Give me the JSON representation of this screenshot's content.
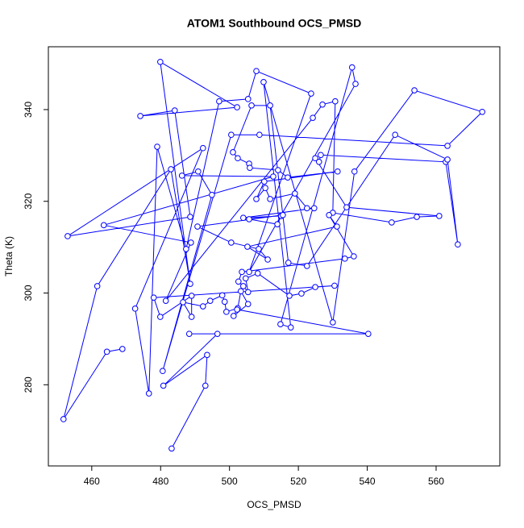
{
  "chart_data": {
    "type": "line",
    "title": "ATOM1 Southbound OCS_PMSD",
    "x_label": "OCS_PMSD",
    "y_label": "Theta (K)",
    "markers": true,
    "color": "#0000ff",
    "xlim": [
      447.4,
      578.5
    ],
    "ylim": [
      262.3,
      353.7
    ],
    "xticks": [
      460,
      480,
      500,
      520,
      540,
      560
    ],
    "yticks": [
      280,
      300,
      320,
      340
    ],
    "x": [
      468.9,
      464.4,
      451.8,
      461.6,
      483.0,
      488.6,
      479.9,
      502.2,
      474.1,
      484.1,
      488.6,
      453.0,
      492.3,
      472.6,
      476.6,
      479.0,
      487.4,
      497.0,
      505.4,
      507.8,
      523.7,
      505.7,
      536.6,
      535.6,
      514.8,
      517.8,
      509.9,
      530.0,
      536.3,
      553.7,
      573.4,
      563.3,
      508.7,
      500.5,
      480.6,
      494.9,
      490.9,
      486.2,
      512.7,
      463.5,
      488.8,
      481.5,
      524.2,
      527.0,
      530.7,
      530.0,
      547.1,
      554.4,
      560.9,
      534.0,
      524.9,
      526.0,
      526.5,
      562.8,
      566.3,
      563.3,
      548.1,
      522.5,
      517.1,
      511.8,
      506.4,
      501.0,
      502.4,
      505.7,
      505.9,
      514.1,
      516.9,
      531.4,
      510.1,
      507.8,
      510.4,
      511.8,
      519.0,
      522.5,
      524.6,
      504.0,
      515.0,
      513.9,
      505.7,
      515.5,
      490.7,
      500.5,
      508.5,
      511.1,
      505.2,
      531.2,
      528.9,
      536.1,
      533.5,
      503.6,
      502.6,
      504.0,
      505.4,
      504.7,
      508.2,
      517.4,
      520.9,
      524.9,
      530.5,
      478.0,
      479.9,
      489.0,
      489.0,
      486.5,
      492.3,
      494.4,
      497.9,
      498.6,
      499.1,
      502.4,
      503.3,
      505.4,
      501.2,
      502.2,
      540.3,
      488.3,
      496.5,
      480.8,
      493.5,
      493.0,
      483.2
    ],
    "y": [
      287.8,
      287.2,
      272.5,
      301.5,
      327.0,
      302.0,
      350.4,
      340.5,
      338.6,
      339.8,
      316.6,
      312.4,
      331.6,
      296.6,
      278.1,
      331.9,
      309.6,
      341.8,
      342.3,
      348.4,
      343.5,
      304.6,
      345.6,
      349.2,
      293.2,
      292.5,
      346.0,
      293.6,
      326.5,
      344.2,
      339.5,
      332.1,
      334.5,
      334.5,
      283.0,
      321.4,
      326.5,
      325.6,
      325.4,
      314.8,
      311.0,
      298.3,
      338.2,
      341.1,
      341.8,
      317.5,
      315.4,
      316.6,
      316.8,
      318.7,
      329.4,
      328.6,
      330.1,
      328.6,
      310.6,
      329.1,
      334.5,
      305.9,
      306.6,
      340.9,
      340.9,
      330.7,
      329.4,
      328.2,
      327.3,
      326.8,
      325.2,
      326.5,
      324.3,
      320.5,
      322.9,
      320.5,
      321.7,
      318.5,
      318.5,
      316.4,
      316.8,
      315.0,
      316.1,
      317.0,
      314.5,
      311.0,
      309.6,
      307.3,
      310.1,
      314.5,
      317.0,
      308.0,
      307.5,
      304.6,
      302.5,
      301.5,
      300.2,
      303.2,
      304.3,
      299.4,
      299.9,
      301.3,
      301.6,
      299.0,
      294.8,
      299.4,
      294.8,
      298.0,
      297.1,
      298.3,
      299.5,
      298.1,
      295.9,
      296.7,
      300.4,
      297.6,
      295.0,
      296.4,
      291.1,
      291.1,
      291.1,
      279.8,
      286.5,
      279.8,
      266.1
    ]
  }
}
